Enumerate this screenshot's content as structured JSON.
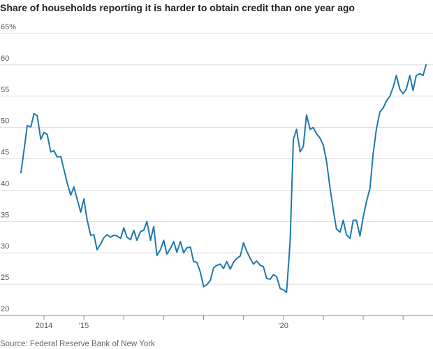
{
  "chart_data": {
    "type": "line",
    "title": "Share of households reporting it is harder to obtain credit than one year ago",
    "source": "Source: Federal Reserve Bank of New York",
    "x": [
      2013.42,
      2013.5,
      2013.58,
      2013.67,
      2013.75,
      2013.83,
      2013.92,
      2014,
      2014.08,
      2014.17,
      2014.25,
      2014.33,
      2014.42,
      2014.5,
      2014.58,
      2014.67,
      2014.75,
      2014.83,
      2014.92,
      2015,
      2015.08,
      2015.17,
      2015.25,
      2015.33,
      2015.42,
      2015.5,
      2015.58,
      2015.67,
      2015.75,
      2015.83,
      2015.92,
      2016,
      2016.08,
      2016.17,
      2016.25,
      2016.33,
      2016.42,
      2016.5,
      2016.58,
      2016.67,
      2016.75,
      2016.83,
      2016.92,
      2017,
      2017.08,
      2017.17,
      2017.25,
      2017.33,
      2017.42,
      2017.5,
      2017.58,
      2017.67,
      2017.75,
      2017.83,
      2017.92,
      2018,
      2018.08,
      2018.17,
      2018.25,
      2018.33,
      2018.42,
      2018.5,
      2018.58,
      2018.67,
      2018.75,
      2018.83,
      2018.92,
      2019,
      2019.08,
      2019.17,
      2019.25,
      2019.33,
      2019.42,
      2019.5,
      2019.58,
      2019.67,
      2019.75,
      2019.83,
      2019.92,
      2020,
      2020.08,
      2020.17,
      2020.25,
      2020.33,
      2020.42,
      2020.5,
      2020.58,
      2020.67,
      2020.75,
      2020.83,
      2020.92,
      2021,
      2021.08,
      2021.17,
      2021.25,
      2021.33,
      2021.42,
      2021.5,
      2021.58,
      2021.67,
      2021.75,
      2021.83,
      2021.92,
      2022,
      2022.08,
      2022.17,
      2022.25,
      2022.33,
      2022.42,
      2022.5,
      2022.58,
      2022.67,
      2022.75,
      2022.83,
      2022.92,
      2023,
      2023.08,
      2023.17,
      2023.25,
      2023.33,
      2023.42,
      2023.5,
      2023.58
    ],
    "series": [
      {
        "color": "#1f78ad",
        "values": [
          42.7,
          46.4,
          50.3,
          50.1,
          52.2,
          51.9,
          48.1,
          49.2,
          48.9,
          46.1,
          46.3,
          45.3,
          45.4,
          43.3,
          41.2,
          39.2,
          40.5,
          38.6,
          36.5,
          38.6,
          35.3,
          32.8,
          32.9,
          30.5,
          31.4,
          32.4,
          32.9,
          32.5,
          32.8,
          32.7,
          32.3,
          34.0,
          32.5,
          32.1,
          33.6,
          32.0,
          33.4,
          33.6,
          35.0,
          32.0,
          34.2,
          29.6,
          30.5,
          32.0,
          29.8,
          30.7,
          31.8,
          30.1,
          31.8,
          30.0,
          30.8,
          30.9,
          28.6,
          28.5,
          26.9,
          24.6,
          24.9,
          25.6,
          27.6,
          28.0,
          28.2,
          27.5,
          28.6,
          27.4,
          28.5,
          29.1,
          29.5,
          31.6,
          30.3,
          29.1,
          28.2,
          28.7,
          28.0,
          27.8,
          25.9,
          25.8,
          26.5,
          26.2,
          24.3,
          24.1,
          23.7,
          31.9,
          48.1,
          49.7,
          46.1,
          47.0,
          52.0,
          49.7,
          50.0,
          49.0,
          48.3,
          47.2,
          44.7,
          40.3,
          36.9,
          33.8,
          33.3,
          35.2,
          32.9,
          32.3,
          35.2,
          35.2,
          32.7,
          35.7,
          38.1,
          40.3,
          45.8,
          49.7,
          52.5,
          53.1,
          54.2,
          55.0,
          56.4,
          58.3,
          56.1,
          55.4,
          56.1,
          58.3,
          55.9,
          58.3,
          58.6,
          58.3,
          60.1
        ]
      }
    ],
    "xlim": [
      2013.3,
      2023.75
    ],
    "xticks": [
      {
        "value": 2014,
        "label": "2014"
      },
      {
        "value": 2015,
        "label": "'15"
      },
      {
        "value": 2020,
        "label": "'20"
      }
    ],
    "minor_xticks": [
      2016,
      2017,
      2018,
      2019,
      2021,
      2022,
      2023
    ],
    "ylim": [
      20,
      65
    ],
    "yticks": [
      20,
      25,
      30,
      35,
      40,
      45,
      50,
      55,
      60,
      {
        "value": 65,
        "label": "65%"
      }
    ],
    "grid": true
  }
}
